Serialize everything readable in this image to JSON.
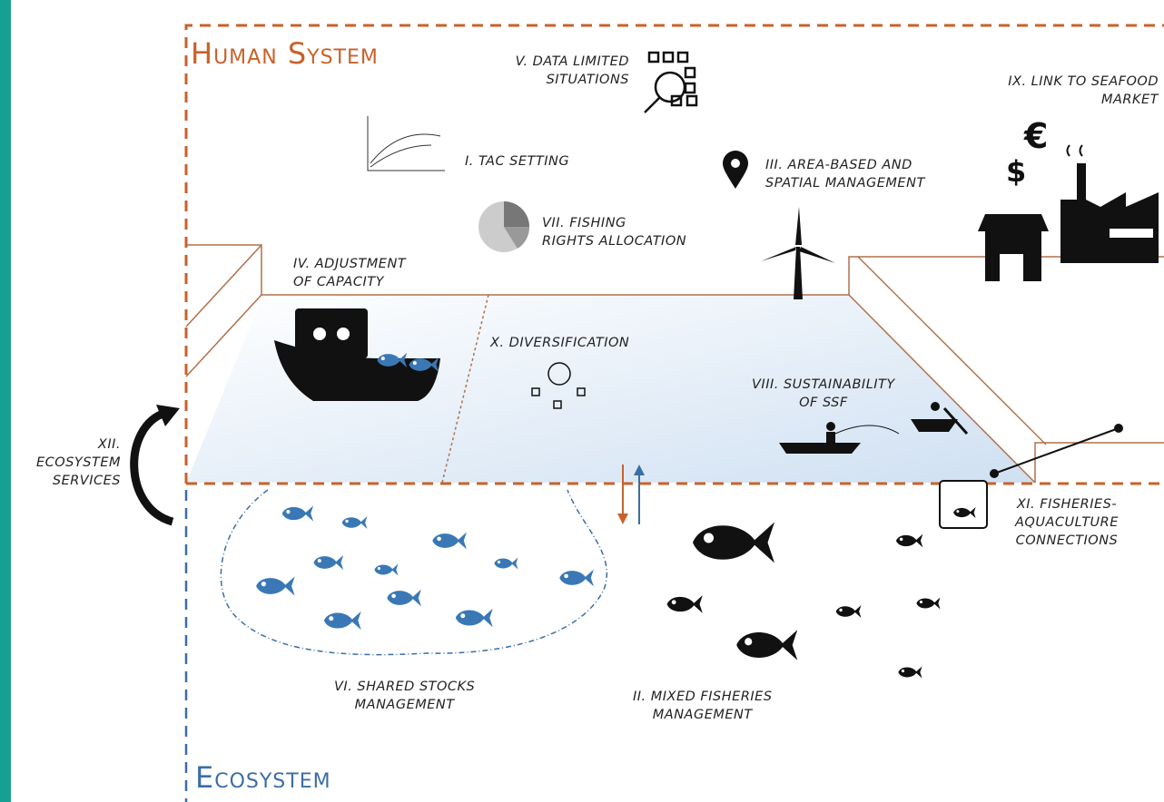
{
  "titles": {
    "human": "Human System",
    "ecosystem": "Ecosystem"
  },
  "labels": {
    "data_limited": "V. DATA LIMITED\nSITUATIONS",
    "seafood_market": "IX. LINK TO SEAFOOD\nMARKET",
    "tac": "I. TAC SETTING",
    "area_based": "III. AREA-BASED AND\nSPATIAL MANAGEMENT",
    "fishing_rights": "VII. FISHING\nRIGHTS ALLOCATION",
    "capacity": "IV. ADJUSTMENT\nOF CAPACITY",
    "diversification": "X. DIVERSIFICATION",
    "ssf": "VIII. SUSTAINABILITY\nOF SSF",
    "ecosystem_services": "XII.\nECOSYSTEM\nSERVICES",
    "aquaculture": "XI. FISHERIES-\nAQUACULTURE\nCONNECTIONS",
    "shared_stocks": "VI. SHARED STOCKS\nMANAGEMENT",
    "mixed_fisheries": "II. MIXED FISHERIES\nMANAGEMENT"
  },
  "currency": [
    "€",
    "$"
  ]
}
